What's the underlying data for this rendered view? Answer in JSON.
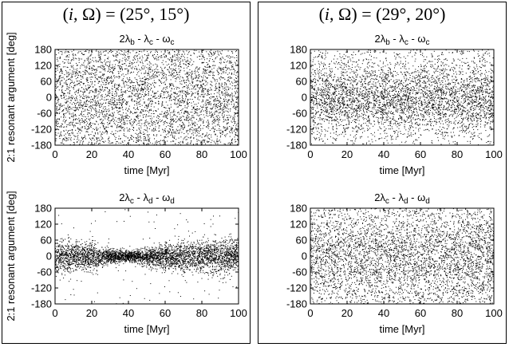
{
  "panels": [
    {
      "title": "(i,Ω) = (25°,15°)",
      "title_parts": {
        "i": "i",
        "Omega": "Ω",
        "value": "(25°, 15°)"
      },
      "ylabel": "2:1 resonant argument [deg]"
    },
    {
      "title": "(i,Ω) = (29°,20°)",
      "title_parts": {
        "i": "i",
        "Omega": "Ω",
        "value": "(29°, 20°)"
      },
      "ylabel": ""
    }
  ],
  "chart_data": [
    {
      "id": "top-left",
      "type": "scatter",
      "title": "2λ_b - λ_c - ω_c",
      "title_parts": {
        "t1": "2λ",
        "s1": "b",
        "t2": " - λ",
        "s2": "c",
        "t3": " - ω",
        "s3": "c"
      },
      "xlabel": "time [Myr]",
      "ylabel": "2:1 resonant argument [deg]",
      "xlim": [
        0,
        100
      ],
      "ylim": [
        -180,
        180
      ],
      "xticks": [
        0,
        20,
        40,
        60,
        80,
        100
      ],
      "yticks": [
        -180,
        -120,
        -60,
        0,
        60,
        120,
        180
      ],
      "distribution": {
        "kind": "near-uniform",
        "center_deg": 0,
        "spread_deg": 180,
        "density": "high"
      }
    },
    {
      "id": "top-right",
      "type": "scatter",
      "title": "2λ_b - λ_c - ω_c",
      "title_parts": {
        "t1": "2λ",
        "s1": "b",
        "t2": " - λ",
        "s2": "c",
        "t3": " - ω",
        "s3": "c"
      },
      "xlabel": "time [Myr]",
      "ylabel": "",
      "xlim": [
        0,
        100
      ],
      "ylim": [
        -180,
        180
      ],
      "xticks": [
        0,
        20,
        40,
        60,
        80,
        100
      ],
      "yticks": [
        -180,
        -120,
        -60,
        0,
        60,
        120,
        180
      ],
      "distribution": {
        "kind": "concentrated",
        "center_deg": 0,
        "spread_deg": 70,
        "density": "high"
      }
    },
    {
      "id": "bottom-left",
      "type": "scatter",
      "title": "2λ_c - λ_d - ω_d",
      "title_parts": {
        "t1": "2λ",
        "s1": "c",
        "t2": " - λ",
        "s2": "d",
        "t3": " - ω",
        "s3": "d"
      },
      "xlabel": "time [Myr]",
      "ylabel": "2:1 resonant argument [deg]",
      "xlim": [
        0,
        100
      ],
      "ylim": [
        -180,
        180
      ],
      "xticks": [
        0,
        20,
        40,
        60,
        80,
        100
      ],
      "yticks": [
        -180,
        -120,
        -60,
        0,
        60,
        120,
        180
      ],
      "distribution": {
        "kind": "libration",
        "center_deg": 0,
        "amplitude_by_time": [
          [
            0,
            55
          ],
          [
            10,
            50
          ],
          [
            20,
            45
          ],
          [
            30,
            25
          ],
          [
            40,
            18
          ],
          [
            50,
            30
          ],
          [
            60,
            45
          ],
          [
            70,
            50
          ],
          [
            80,
            55
          ],
          [
            90,
            60
          ],
          [
            100,
            50
          ]
        ],
        "density": "high"
      }
    },
    {
      "id": "bottom-right",
      "type": "scatter",
      "title": "2λ_c - λ_d - ω_d",
      "title_parts": {
        "t1": "2λ",
        "s1": "c",
        "t2": " - λ",
        "s2": "d",
        "t3": " - ω",
        "s3": "d"
      },
      "xlabel": "time [Myr]",
      "ylabel": "",
      "xlim": [
        0,
        100
      ],
      "ylim": [
        -180,
        180
      ],
      "xticks": [
        0,
        20,
        40,
        60,
        80,
        100
      ],
      "yticks": [
        -180,
        -120,
        -60,
        0,
        60,
        120,
        180
      ],
      "distribution": {
        "kind": "concentrated",
        "center_deg": 0,
        "spread_deg": 95,
        "density": "high"
      }
    }
  ]
}
